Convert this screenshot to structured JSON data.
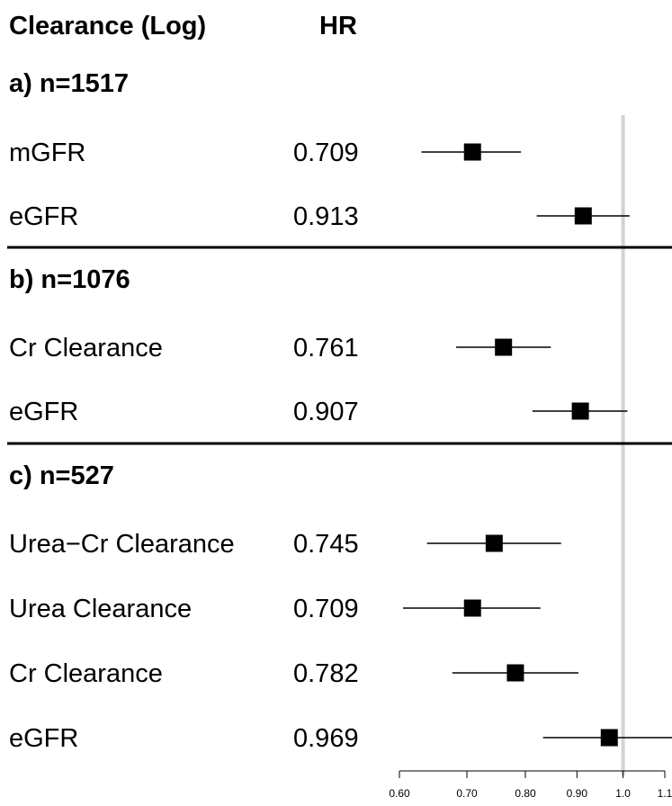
{
  "chart_data": {
    "type": "forest",
    "header": {
      "label_col": "Clearance (Log)",
      "value_col": "HR"
    },
    "x_axis": {
      "scale": "log",
      "ticks": [
        0.6,
        0.7,
        0.8,
        0.9,
        1.0,
        1.1
      ],
      "tick_labels": [
        "0.60",
        "0.70",
        "0.80",
        "0.90",
        "1.0",
        "1.1"
      ],
      "reference_line": 1.0
    },
    "groups": [
      {
        "title": "a) n=1517",
        "rows": [
          {
            "label": "mGFR",
            "hr": 0.709,
            "hr_text": "0.709",
            "lo": 0.631,
            "hi": 0.792
          },
          {
            "label": "eGFR",
            "hr": 0.913,
            "hr_text": "0.913",
            "lo": 0.821,
            "hi": 1.015
          }
        ]
      },
      {
        "title": "b) n=1076",
        "rows": [
          {
            "label": "Cr Clearance",
            "hr": 0.761,
            "hr_text": "0.761",
            "lo": 0.683,
            "hi": 0.848
          },
          {
            "label": "eGFR",
            "hr": 0.907,
            "hr_text": "0.907",
            "lo": 0.813,
            "hi": 1.01
          }
        ]
      },
      {
        "title": "c) n=527",
        "rows": [
          {
            "label": "Urea−Cr Clearance",
            "hr": 0.745,
            "hr_text": "0.745",
            "lo": 0.639,
            "hi": 0.868
          },
          {
            "label": "Urea Clearance",
            "hr": 0.709,
            "hr_text": "0.709",
            "lo": 0.605,
            "hi": 0.828
          },
          {
            "label": "Cr Clearance",
            "hr": 0.782,
            "hr_text": "0.782",
            "lo": 0.677,
            "hi": 0.903
          },
          {
            "label": "eGFR",
            "hr": 0.969,
            "hr_text": "0.969",
            "lo": 0.833,
            "hi": 1.127
          }
        ]
      }
    ]
  }
}
